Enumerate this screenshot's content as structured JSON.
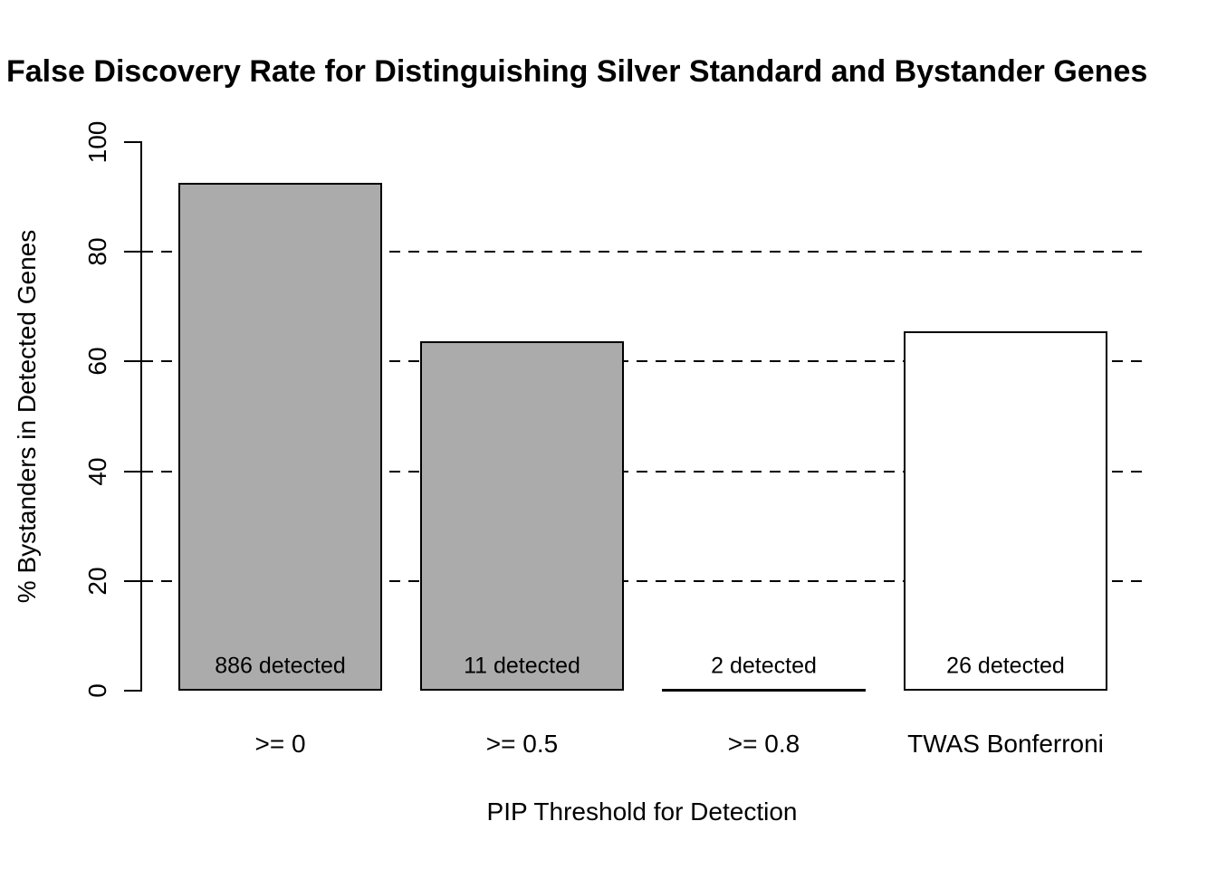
{
  "page": {
    "background_color": "#ffffff",
    "text_color": "#000000"
  },
  "chart_data": {
    "type": "bar",
    "title": "False Discovery Rate for Distinguishing Silver Standard and Bystander Genes",
    "xlabel": "PIP Threshold for Detection",
    "ylabel": "% Bystanders in Detected Genes",
    "categories": [
      ">= 0",
      ">= 0.5",
      ">= 0.8",
      "TWAS Bonferroni"
    ],
    "values": [
      92.6,
      63.7,
      0,
      65.5
    ],
    "bar_labels": [
      "886 detected",
      "11 detected",
      "2 detected",
      "26 detected"
    ],
    "bar_fill_colors": [
      "#ababab",
      "#ababab",
      "#ababab",
      "#ffffff"
    ],
    "bar_border_color": "#000000",
    "ylim": [
      0,
      100
    ],
    "yticks": [
      0,
      20,
      40,
      60,
      80,
      100
    ],
    "gridlines": [
      20,
      40,
      60,
      80
    ],
    "grid_style": "dashed",
    "grid_on": true,
    "legend_position": "none"
  }
}
